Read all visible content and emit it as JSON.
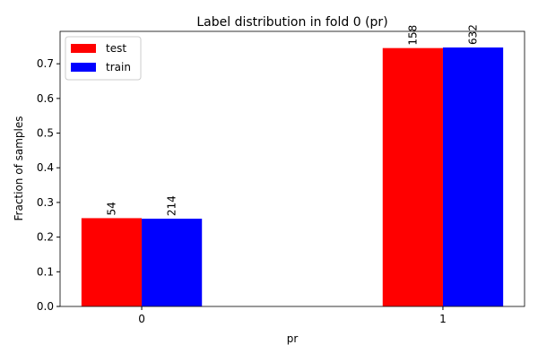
{
  "chart_data": {
    "type": "bar",
    "title": "Label distribution in fold 0 (pr)",
    "xlabel": "pr",
    "ylabel": "Fraction of samples",
    "categories": [
      "0",
      "1"
    ],
    "series": [
      {
        "name": "test",
        "color": "#ff0000",
        "values": [
          0.2547,
          0.7453
        ],
        "value_labels": [
          "54",
          "158"
        ]
      },
      {
        "name": "train",
        "color": "#0000ff",
        "values": [
          0.253,
          0.747
        ],
        "value_labels": [
          "214",
          "632"
        ]
      }
    ],
    "ylim": [
      0,
      0.7935
    ],
    "yticks": [
      {
        "value": 0,
        "label": "0.0"
      },
      0.1,
      0.2,
      0.3,
      0.4,
      0.5,
      0.6,
      0.7
    ],
    "legend": "upper left"
  }
}
